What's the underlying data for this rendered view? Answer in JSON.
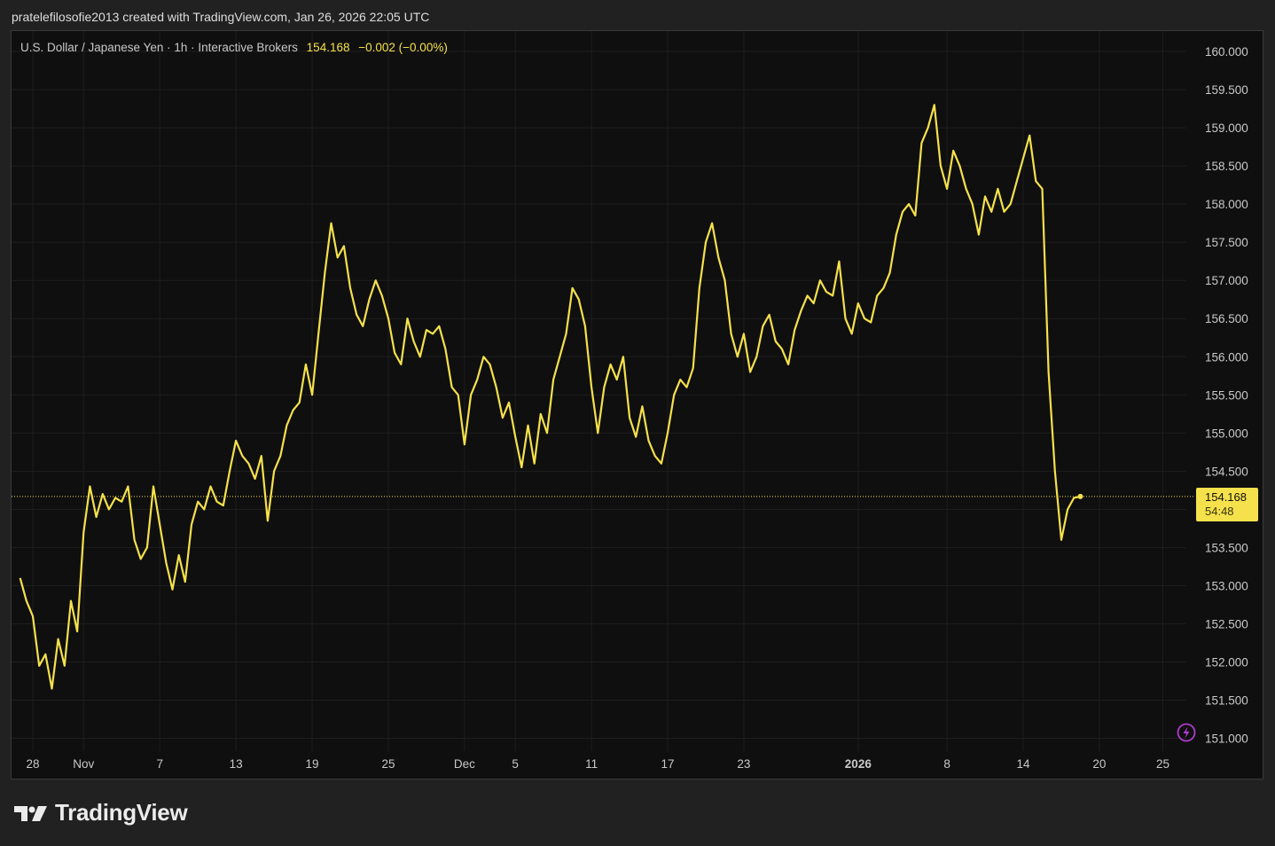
{
  "header": {
    "snapshot_text": "pratelefilosofie2013 created with TradingView.com, Jan 26, 2026 22:05 UTC"
  },
  "legend": {
    "symbol_text": "U.S. Dollar / Japanese Yen · 1h · Interactive Brokers",
    "last_price": "154.168",
    "change": "−0.002 (−0.00%)"
  },
  "price_tag": {
    "price": "154.168",
    "countdown": "54:48"
  },
  "brand": {
    "name": "TradingView"
  },
  "colors": {
    "background": "#0f0f0f",
    "frame": "#212121",
    "line": "#f5e14b",
    "grid": "#1e1e1e",
    "axis_text": "#c9c9c9",
    "flash_icon": "#b03cd0"
  },
  "icons": [
    "tradingview-logo-icon",
    "lightning-flash-icon"
  ],
  "chart_data": {
    "type": "line",
    "symbol": "USDJPY",
    "timeframe": "1h",
    "grid": true,
    "ylim": [
      150.9,
      160.4
    ],
    "y_ticks": [
      "151.000",
      "151.500",
      "152.000",
      "152.500",
      "153.000",
      "153.500",
      "154.000",
      "154.500",
      "155.000",
      "155.500",
      "156.000",
      "156.500",
      "157.000",
      "157.500",
      "158.000",
      "158.500",
      "159.000",
      "159.500",
      "160.000"
    ],
    "x_ticks": [
      {
        "label": "28",
        "date": "2025-10-28"
      },
      {
        "label": "Nov",
        "date": "2025-11-01"
      },
      {
        "label": "7",
        "date": "2025-11-07"
      },
      {
        "label": "13",
        "date": "2025-11-13"
      },
      {
        "label": "19",
        "date": "2025-11-19"
      },
      {
        "label": "25",
        "date": "2025-11-25"
      },
      {
        "label": "Dec",
        "date": "2025-12-01"
      },
      {
        "label": "5",
        "date": "2025-12-05"
      },
      {
        "label": "11",
        "date": "2025-12-11"
      },
      {
        "label": "17",
        "date": "2025-12-17"
      },
      {
        "label": "23",
        "date": "2025-12-23"
      },
      {
        "label": "2026",
        "date": "2026-01-01",
        "bold": true
      },
      {
        "label": "8",
        "date": "2026-01-08"
      },
      {
        "label": "14",
        "date": "2026-01-14"
      },
      {
        "label": "20",
        "date": "2026-01-20"
      },
      {
        "label": "25",
        "date": "2026-01-25"
      }
    ],
    "last_price_line": 154.168,
    "series": [
      {
        "values": [
          [
            "2025-10-27",
            153.1
          ],
          [
            "2025-10-27 12:00",
            152.8
          ],
          [
            "2025-10-28",
            152.6
          ],
          [
            "2025-10-28 12:00",
            151.95
          ],
          [
            "2025-10-29",
            152.1
          ],
          [
            "2025-10-29 12:00",
            151.65
          ],
          [
            "2025-10-30",
            152.3
          ],
          [
            "2025-10-30 12:00",
            151.95
          ],
          [
            "2025-10-31",
            152.8
          ],
          [
            "2025-10-31 12:00",
            152.4
          ],
          [
            "2025-11-01",
            153.7
          ],
          [
            "2025-11-01 12:00",
            154.3
          ],
          [
            "2025-11-02",
            153.9
          ],
          [
            "2025-11-02 12:00",
            154.2
          ],
          [
            "2025-11-03",
            154.0
          ],
          [
            "2025-11-03 12:00",
            154.15
          ],
          [
            "2025-11-04",
            154.1
          ],
          [
            "2025-11-04 12:00",
            154.3
          ],
          [
            "2025-11-05",
            153.6
          ],
          [
            "2025-11-05 12:00",
            153.35
          ],
          [
            "2025-11-06",
            153.5
          ],
          [
            "2025-11-06 12:00",
            154.3
          ],
          [
            "2025-11-07",
            153.8
          ],
          [
            "2025-11-07 12:00",
            153.3
          ],
          [
            "2025-11-08",
            152.95
          ],
          [
            "2025-11-08 12:00",
            153.4
          ],
          [
            "2025-11-09",
            153.05
          ],
          [
            "2025-11-09 12:00",
            153.8
          ],
          [
            "2025-11-10",
            154.1
          ],
          [
            "2025-11-10 12:00",
            154.0
          ],
          [
            "2025-11-11",
            154.3
          ],
          [
            "2025-11-11 12:00",
            154.1
          ],
          [
            "2025-11-12",
            154.05
          ],
          [
            "2025-11-12 12:00",
            154.5
          ],
          [
            "2025-11-13",
            154.9
          ],
          [
            "2025-11-13 12:00",
            154.7
          ],
          [
            "2025-11-14",
            154.6
          ],
          [
            "2025-11-14 12:00",
            154.4
          ],
          [
            "2025-11-15",
            154.7
          ],
          [
            "2025-11-15 12:00",
            153.85
          ],
          [
            "2025-11-16",
            154.5
          ],
          [
            "2025-11-16 12:00",
            154.7
          ],
          [
            "2025-11-17",
            155.1
          ],
          [
            "2025-11-17 12:00",
            155.3
          ],
          [
            "2025-11-18",
            155.4
          ],
          [
            "2025-11-18 12:00",
            155.9
          ],
          [
            "2025-11-19",
            155.5
          ],
          [
            "2025-11-19 12:00",
            156.3
          ],
          [
            "2025-11-20",
            157.1
          ],
          [
            "2025-11-20 12:00",
            157.75
          ],
          [
            "2025-11-21",
            157.3
          ],
          [
            "2025-11-21 12:00",
            157.45
          ],
          [
            "2025-11-22",
            156.9
          ],
          [
            "2025-11-22 12:00",
            156.55
          ],
          [
            "2025-11-23",
            156.4
          ],
          [
            "2025-11-23 12:00",
            156.75
          ],
          [
            "2025-11-24",
            157.0
          ],
          [
            "2025-11-24 12:00",
            156.8
          ],
          [
            "2025-11-25",
            156.5
          ],
          [
            "2025-11-25 12:00",
            156.05
          ],
          [
            "2025-11-26",
            155.9
          ],
          [
            "2025-11-26 12:00",
            156.5
          ],
          [
            "2025-11-27",
            156.2
          ],
          [
            "2025-11-27 12:00",
            156.0
          ],
          [
            "2025-11-28",
            156.35
          ],
          [
            "2025-11-28 12:00",
            156.3
          ],
          [
            "2025-11-29",
            156.4
          ],
          [
            "2025-11-29 12:00",
            156.1
          ],
          [
            "2025-11-30",
            155.6
          ],
          [
            "2025-11-30 12:00",
            155.5
          ],
          [
            "2025-12-01",
            154.85
          ],
          [
            "2025-12-01 12:00",
            155.5
          ],
          [
            "2025-12-02",
            155.7
          ],
          [
            "2025-12-02 12:00",
            156.0
          ],
          [
            "2025-12-03",
            155.9
          ],
          [
            "2025-12-03 12:00",
            155.6
          ],
          [
            "2025-12-04",
            155.2
          ],
          [
            "2025-12-04 12:00",
            155.4
          ],
          [
            "2025-12-05",
            154.95
          ],
          [
            "2025-12-05 12:00",
            154.55
          ],
          [
            "2025-12-06",
            155.1
          ],
          [
            "2025-12-06 12:00",
            154.6
          ],
          [
            "2025-12-07",
            155.25
          ],
          [
            "2025-12-07 12:00",
            155.0
          ],
          [
            "2025-12-08",
            155.7
          ],
          [
            "2025-12-08 12:00",
            156.0
          ],
          [
            "2025-12-09",
            156.3
          ],
          [
            "2025-12-09 12:00",
            156.9
          ],
          [
            "2025-12-10",
            156.75
          ],
          [
            "2025-12-10 12:00",
            156.4
          ],
          [
            "2025-12-11",
            155.6
          ],
          [
            "2025-12-11 12:00",
            155.0
          ],
          [
            "2025-12-12",
            155.6
          ],
          [
            "2025-12-12 12:00",
            155.9
          ],
          [
            "2025-12-13",
            155.7
          ],
          [
            "2025-12-13 12:00",
            156.0
          ],
          [
            "2025-12-14",
            155.2
          ],
          [
            "2025-12-14 12:00",
            154.95
          ],
          [
            "2025-12-15",
            155.35
          ],
          [
            "2025-12-15 12:00",
            154.9
          ],
          [
            "2025-12-16",
            154.7
          ],
          [
            "2025-12-16 12:00",
            154.6
          ],
          [
            "2025-12-17",
            155.0
          ],
          [
            "2025-12-17 12:00",
            155.5
          ],
          [
            "2025-12-18",
            155.7
          ],
          [
            "2025-12-18 12:00",
            155.6
          ],
          [
            "2025-12-19",
            155.85
          ],
          [
            "2025-12-19 12:00",
            156.9
          ],
          [
            "2025-12-20",
            157.5
          ],
          [
            "2025-12-20 12:00",
            157.75
          ],
          [
            "2025-12-21",
            157.3
          ],
          [
            "2025-12-21 12:00",
            157.0
          ],
          [
            "2025-12-22",
            156.3
          ],
          [
            "2025-12-22 12:00",
            156.0
          ],
          [
            "2025-12-23",
            156.3
          ],
          [
            "2025-12-23 12:00",
            155.8
          ],
          [
            "2025-12-24",
            156.0
          ],
          [
            "2025-12-24 12:00",
            156.4
          ],
          [
            "2025-12-25",
            156.55
          ],
          [
            "2025-12-25 12:00",
            156.2
          ],
          [
            "2025-12-26",
            156.1
          ],
          [
            "2025-12-26 12:00",
            155.9
          ],
          [
            "2025-12-27",
            156.35
          ],
          [
            "2025-12-27 12:00",
            156.6
          ],
          [
            "2025-12-28",
            156.8
          ],
          [
            "2025-12-28 12:00",
            156.7
          ],
          [
            "2025-12-29",
            157.0
          ],
          [
            "2025-12-29 12:00",
            156.85
          ],
          [
            "2025-12-30",
            156.8
          ],
          [
            "2025-12-30 12:00",
            157.25
          ],
          [
            "2025-12-31",
            156.5
          ],
          [
            "2025-12-31 12:00",
            156.3
          ],
          [
            "2026-01-01",
            156.7
          ],
          [
            "2026-01-01 12:00",
            156.5
          ],
          [
            "2026-01-02",
            156.45
          ],
          [
            "2026-01-02 12:00",
            156.8
          ],
          [
            "2026-01-03",
            156.9
          ],
          [
            "2026-01-03 12:00",
            157.1
          ],
          [
            "2026-01-04",
            157.6
          ],
          [
            "2026-01-04 12:00",
            157.9
          ],
          [
            "2026-01-05",
            158.0
          ],
          [
            "2026-01-05 12:00",
            157.85
          ],
          [
            "2026-01-06",
            158.8
          ],
          [
            "2026-01-06 12:00",
            159.0
          ],
          [
            "2026-01-07",
            159.3
          ],
          [
            "2026-01-07 12:00",
            158.5
          ],
          [
            "2026-01-08",
            158.2
          ],
          [
            "2026-01-08 12:00",
            158.7
          ],
          [
            "2026-01-09",
            158.5
          ],
          [
            "2026-01-09 12:00",
            158.2
          ],
          [
            "2026-01-10",
            158.0
          ],
          [
            "2026-01-10 12:00",
            157.6
          ],
          [
            "2026-01-11",
            158.1
          ],
          [
            "2026-01-11 12:00",
            157.9
          ],
          [
            "2026-01-12",
            158.2
          ],
          [
            "2026-01-12 12:00",
            157.9
          ],
          [
            "2026-01-13",
            158.0
          ],
          [
            "2026-01-13 12:00",
            158.3
          ],
          [
            "2026-01-14",
            158.6
          ],
          [
            "2026-01-14 12:00",
            158.9
          ],
          [
            "2026-01-15",
            158.3
          ],
          [
            "2026-01-15 12:00",
            158.2
          ],
          [
            "2026-01-16",
            155.8
          ],
          [
            "2026-01-16 12:00",
            154.5
          ],
          [
            "2026-01-17",
            153.6
          ],
          [
            "2026-01-17 12:00",
            154.0
          ],
          [
            "2026-01-18",
            154.15
          ],
          [
            "2026-01-18 12:00",
            154.168
          ]
        ]
      }
    ]
  }
}
